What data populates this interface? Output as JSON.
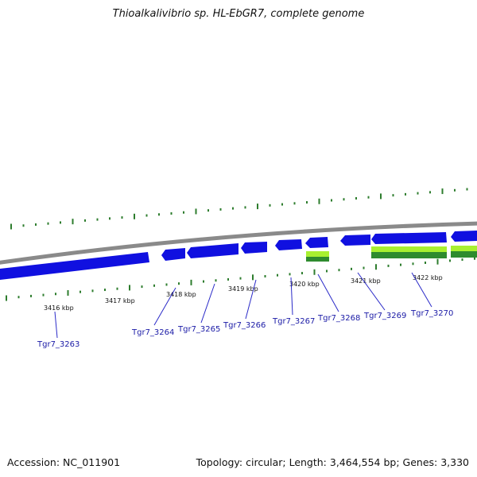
{
  "title": "Thioalkalivibrio sp. HL-EbGR7, complete genome",
  "footer": {
    "accession": "Accession: NC_011901",
    "topology": "Topology: circular; Length: 3,464,554 bp; Genes: 3,330"
  },
  "colors": {
    "backbone": "#8a8a8a",
    "cds_forward": "#1010e0",
    "cds_reverse": "#1010e0",
    "rna_light": "#a8f030",
    "rna_dark": "#2e8b2e",
    "tick": "#2e7d2e",
    "label_line": "#2a2ac8",
    "label_text": "#1a1aa6"
  },
  "kbp_labels": [
    "3416 kbp",
    "3417 kbp",
    "3418 kbp",
    "3419 kbp",
    "3420 kbp",
    "3421 kbp",
    "3422 kbp"
  ],
  "gene_labels": [
    "Tgr7_3263",
    "Tgr7_3264",
    "Tgr7_3265",
    "Tgr7_3266",
    "Tgr7_3267",
    "Tgr7_3268",
    "Tgr7_3269",
    "Tgr7_3270"
  ]
}
